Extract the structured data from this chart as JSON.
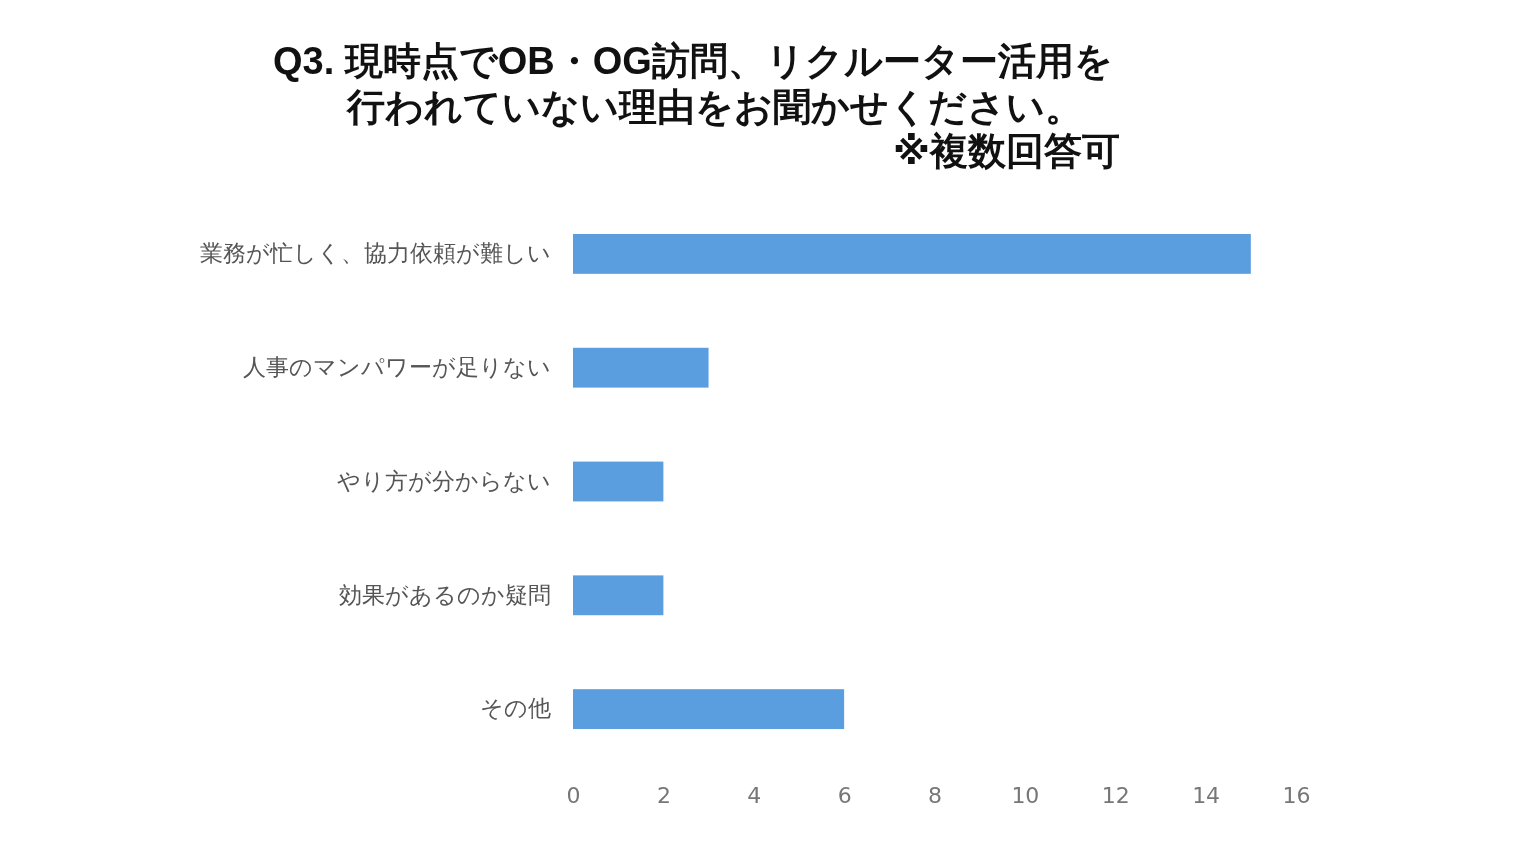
{
  "chart_data": {
    "type": "bar",
    "orientation": "horizontal",
    "title": "Q3. 現時点でOB・OG訪問、リクルーター活用を行われていない理由をお聞かせください。",
    "subtitle": "※複数回答可",
    "categories": [
      "業務が忙しく、協力依頼が難しい",
      "人事のマンパワーが足りない",
      "やり方が分からない",
      "効果があるのか疑問",
      "その他"
    ],
    "values": [
      15,
      3,
      2,
      2,
      6
    ],
    "color": "#5a9ee0",
    "xlim": [
      0,
      16
    ],
    "xticks": [
      0,
      2,
      4,
      6,
      8,
      10,
      12,
      14,
      16
    ]
  }
}
